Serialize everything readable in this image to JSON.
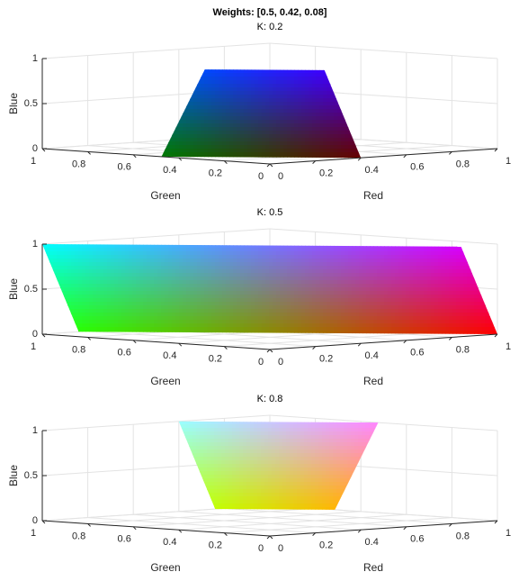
{
  "title": "Weights: [0.5, 0.42, 0.08]",
  "weights": [
    0.5,
    0.42,
    0.08
  ],
  "chart_data": [
    {
      "type": "surface",
      "title": "K: 0.2",
      "k": 0.2,
      "xlabel": "Red",
      "ylabel": "Green",
      "zlabel": "Blue",
      "xlim": [
        0,
        1
      ],
      "xticks": [
        0,
        0.2,
        0.4,
        0.6,
        0.8,
        1
      ],
      "ylim": [
        0,
        1
      ],
      "yticks": [
        0,
        0.2,
        0.4,
        0.6,
        0.8,
        1
      ],
      "zlim": [
        0,
        1
      ],
      "zticks": [
        0,
        0.5,
        1
      ],
      "grid": true
    },
    {
      "type": "surface",
      "title": "K: 0.5",
      "k": 0.5,
      "xlabel": "Red",
      "ylabel": "Green",
      "zlabel": "Blue",
      "xlim": [
        0,
        1
      ],
      "xticks": [
        0,
        0.2,
        0.4,
        0.6,
        0.8,
        1
      ],
      "ylim": [
        0,
        1
      ],
      "yticks": [
        0,
        0.2,
        0.4,
        0.6,
        0.8,
        1
      ],
      "zlim": [
        0,
        1
      ],
      "zticks": [
        0,
        0.5,
        1
      ],
      "grid": true
    },
    {
      "type": "surface",
      "title": "K: 0.8",
      "k": 0.8,
      "xlabel": "Red",
      "ylabel": "Green",
      "zlabel": "Blue",
      "xlim": [
        0,
        1
      ],
      "xticks": [
        0,
        0.2,
        0.4,
        0.6,
        0.8,
        1
      ],
      "ylim": [
        0,
        1
      ],
      "yticks": [
        0,
        0.2,
        0.4,
        0.6,
        0.8,
        1
      ],
      "zlim": [
        0,
        1
      ],
      "zticks": [
        0,
        0.5,
        1
      ],
      "grid": true
    }
  ]
}
